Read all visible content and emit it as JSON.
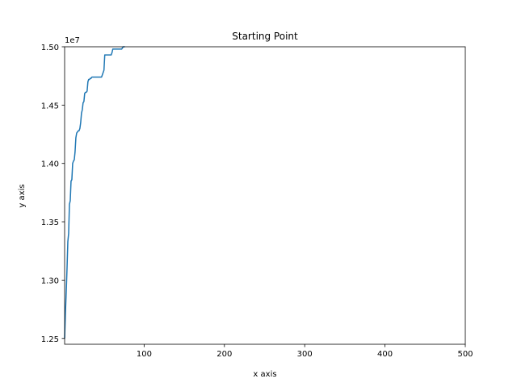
{
  "chart_data": {
    "type": "line",
    "title": "Starting Point",
    "xlabel": "x axis",
    "ylabel": "y axis",
    "y_offset_text": "1e7",
    "xlim": [
      1,
      500
    ],
    "ylim": [
      12450000,
      15000000
    ],
    "x_ticks": [
      100,
      200,
      300,
      400,
      500
    ],
    "x_tick_labels": [
      "100",
      "200",
      "300",
      "400",
      "500"
    ],
    "y_ticks": [
      12500000,
      13000000,
      13500000,
      14000000,
      14500000,
      15000000
    ],
    "y_tick_labels": [
      "1.25",
      "1.30",
      "1.35",
      "1.40",
      "1.45",
      "1.50"
    ],
    "grid": false,
    "line_color": "#1f77b4",
    "series": [
      {
        "x": [
          1,
          2,
          3,
          4,
          5,
          6,
          7,
          8,
          9,
          10,
          11,
          12,
          13,
          14,
          15,
          16,
          17,
          18,
          19,
          20,
          21,
          22,
          23,
          24,
          25,
          26,
          27,
          28,
          29,
          30,
          31,
          32,
          33,
          34,
          35,
          36,
          37,
          38,
          39,
          40,
          41,
          42,
          43,
          44,
          45,
          46,
          47,
          48,
          49,
          50,
          51,
          52,
          53,
          54,
          55,
          56,
          57,
          58,
          59,
          60,
          61,
          62,
          63,
          64,
          65,
          66,
          67,
          68,
          69,
          70,
          71,
          72,
          73,
          74,
          75,
          76
        ],
        "y": [
          12500000,
          12720000,
          12900000,
          13100000,
          13330000,
          13400000,
          13650000,
          13680000,
          13850000,
          13860000,
          14000000,
          14020000,
          14030000,
          14100000,
          14220000,
          14260000,
          14270000,
          14280000,
          14280000,
          14300000,
          14350000,
          14430000,
          14460000,
          14520000,
          14530000,
          14600000,
          14610000,
          14610000,
          14620000,
          14700000,
          14720000,
          14720000,
          14730000,
          14730000,
          14740000,
          14740000,
          14740000,
          14740000,
          14740000,
          14740000,
          14740000,
          14740000,
          14740000,
          14740000,
          14740000,
          14740000,
          14740000,
          14760000,
          14780000,
          14800000,
          14930000,
          14930000,
          14930000,
          14930000,
          14930000,
          14930000,
          14930000,
          14930000,
          14930000,
          14950000,
          14980000,
          14980000,
          14980000,
          14980000,
          14980000,
          14980000,
          14980000,
          14980000,
          14980000,
          14980000,
          14980000,
          14980000,
          14990000,
          15000000,
          15000000,
          15000000
        ]
      }
    ]
  }
}
